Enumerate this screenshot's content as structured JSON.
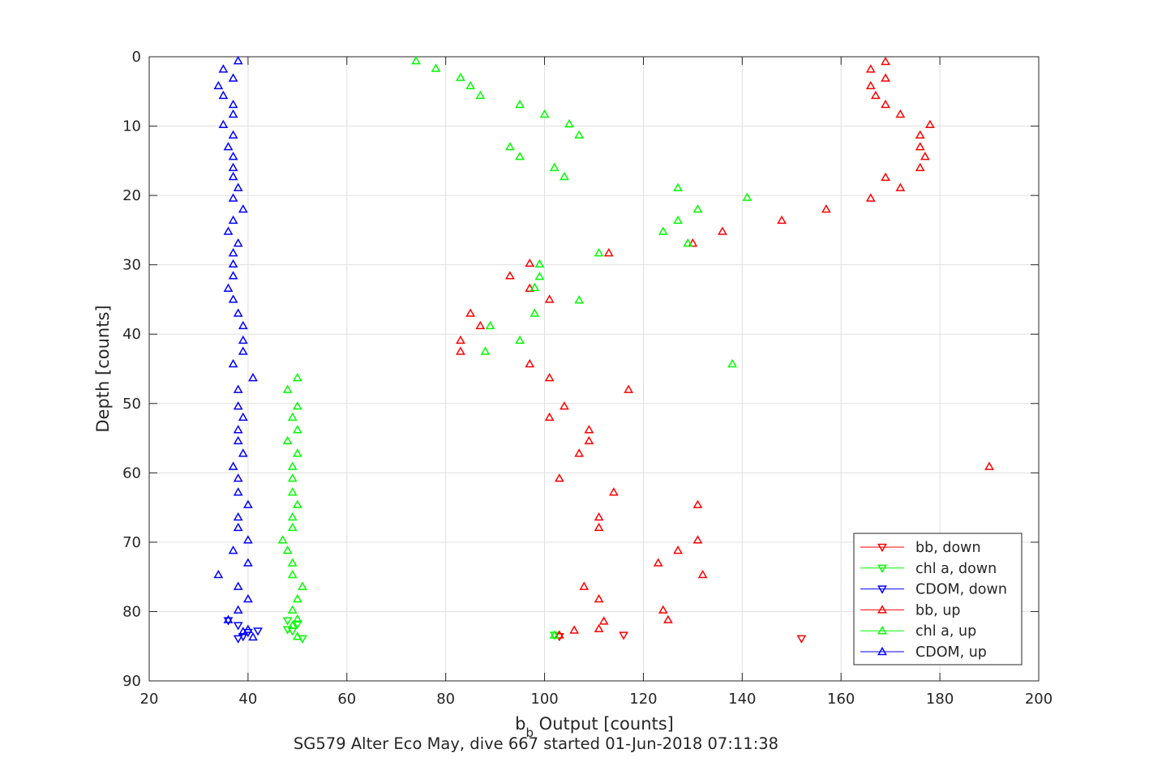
{
  "chart_data": {
    "type": "scatter",
    "title": "",
    "subtitle": "SG579 Alter Eco May, dive 667 started 01-Jun-2018 07:11:38",
    "xlabel": "b",
    "xlabel_sub": "b",
    "xlabel_rest": " Output [counts]",
    "ylabel": "Depth [counts]",
    "xlim": [
      20,
      200
    ],
    "ylim": [
      0,
      90
    ],
    "y_reversed": true,
    "grid": true,
    "xticks": [
      "20",
      "40",
      "60",
      "80",
      "100",
      "120",
      "140",
      "160",
      "180",
      "200"
    ],
    "yticks": [
      "0",
      "10",
      "20",
      "30",
      "40",
      "50",
      "60",
      "70",
      "80",
      "90"
    ],
    "legend_position": "bottom-right",
    "series": [
      {
        "name": "bb, down",
        "color": "#ff0000",
        "marker": "triangle-down",
        "points": [
          [
            116,
            83.4
          ],
          [
            152,
            83.9
          ],
          [
            103,
            83.6
          ]
        ]
      },
      {
        "name": "chl a, down",
        "color": "#00ff00",
        "marker": "triangle-down",
        "points": [
          [
            48,
            81.3
          ],
          [
            48,
            82.6
          ],
          [
            49,
            82.8
          ],
          [
            50,
            81.8
          ],
          [
            51,
            83.9
          ],
          [
            102,
            83.4
          ]
        ]
      },
      {
        "name": "CDOM, down",
        "color": "#0000ff",
        "marker": "triangle-down",
        "points": [
          [
            36,
            81.3
          ],
          [
            38,
            82.0
          ],
          [
            42,
            82.8
          ],
          [
            40,
            83.0
          ],
          [
            38,
            83.9
          ],
          [
            39,
            83.6
          ]
        ]
      },
      {
        "name": "bb, up",
        "color": "#ff0000",
        "marker": "triangle-up",
        "points": [
          [
            169,
            0.7
          ],
          [
            166,
            1.8
          ],
          [
            169,
            3.1
          ],
          [
            166,
            4.2
          ],
          [
            167,
            5.6
          ],
          [
            169,
            6.9
          ],
          [
            172,
            8.3
          ],
          [
            178,
            9.8
          ],
          [
            176,
            11.3
          ],
          [
            176,
            13.0
          ],
          [
            177,
            14.4
          ],
          [
            176,
            16.0
          ],
          [
            169,
            17.4
          ],
          [
            172,
            18.9
          ],
          [
            166,
            20.4
          ],
          [
            157,
            22.0
          ],
          [
            148,
            23.6
          ],
          [
            136,
            25.2
          ],
          [
            130,
            26.9
          ],
          [
            113,
            28.3
          ],
          [
            97,
            29.8
          ],
          [
            93,
            31.6
          ],
          [
            97,
            33.4
          ],
          [
            101,
            35.0
          ],
          [
            85,
            37.0
          ],
          [
            87,
            38.8
          ],
          [
            83,
            40.9
          ],
          [
            83,
            42.5
          ],
          [
            97,
            44.3
          ],
          [
            101,
            46.3
          ],
          [
            117,
            48.0
          ],
          [
            104,
            50.4
          ],
          [
            101,
            52.0
          ],
          [
            109,
            53.8
          ],
          [
            109,
            55.4
          ],
          [
            107,
            57.2
          ],
          [
            190,
            59.1
          ],
          [
            103,
            60.8
          ],
          [
            114,
            62.8
          ],
          [
            131,
            64.6
          ],
          [
            111,
            66.4
          ],
          [
            111,
            67.9
          ],
          [
            131,
            69.7
          ],
          [
            127,
            71.2
          ],
          [
            123,
            73.0
          ],
          [
            132,
            74.7
          ],
          [
            108,
            76.4
          ],
          [
            111,
            78.2
          ],
          [
            124,
            79.8
          ],
          [
            125,
            81.2
          ],
          [
            112,
            81.4
          ],
          [
            111,
            82.5
          ],
          [
            106,
            82.7
          ],
          [
            103,
            83.4
          ]
        ]
      },
      {
        "name": "chl a, up",
        "color": "#00ff00",
        "marker": "triangle-up",
        "points": [
          [
            74,
            0.6
          ],
          [
            78,
            1.7
          ],
          [
            83,
            3.0
          ],
          [
            85,
            4.2
          ],
          [
            87,
            5.6
          ],
          [
            95,
            6.9
          ],
          [
            100,
            8.3
          ],
          [
            105,
            9.7
          ],
          [
            107,
            11.3
          ],
          [
            93,
            13.0
          ],
          [
            95,
            14.4
          ],
          [
            102,
            16.0
          ],
          [
            104,
            17.3
          ],
          [
            127,
            18.9
          ],
          [
            141,
            20.3
          ],
          [
            131,
            22.0
          ],
          [
            127,
            23.6
          ],
          [
            124,
            25.2
          ],
          [
            129,
            26.9
          ],
          [
            111,
            28.3
          ],
          [
            99,
            29.9
          ],
          [
            99,
            31.7
          ],
          [
            98,
            33.3
          ],
          [
            107,
            35.1
          ],
          [
            98,
            37.0
          ],
          [
            89,
            38.8
          ],
          [
            95,
            40.9
          ],
          [
            88,
            42.5
          ],
          [
            138,
            44.3
          ],
          [
            50,
            46.3
          ],
          [
            48,
            48.0
          ],
          [
            50,
            50.4
          ],
          [
            49,
            52.0
          ],
          [
            50,
            53.8
          ],
          [
            48,
            55.4
          ],
          [
            50,
            57.2
          ],
          [
            49,
            59.1
          ],
          [
            49,
            60.8
          ],
          [
            49,
            62.8
          ],
          [
            50,
            64.6
          ],
          [
            49,
            66.4
          ],
          [
            49,
            67.9
          ],
          [
            47,
            69.7
          ],
          [
            48,
            71.2
          ],
          [
            49,
            73.0
          ],
          [
            49,
            74.7
          ],
          [
            51,
            76.4
          ],
          [
            50,
            78.2
          ],
          [
            49,
            79.8
          ],
          [
            50,
            81.1
          ],
          [
            49,
            82.0
          ],
          [
            50,
            83.6
          ],
          [
            102,
            83.4
          ]
        ]
      },
      {
        "name": "CDOM, up",
        "color": "#0000ff",
        "marker": "triangle-up",
        "points": [
          [
            38,
            0.6
          ],
          [
            35,
            1.8
          ],
          [
            37,
            3.1
          ],
          [
            34,
            4.2
          ],
          [
            35,
            5.6
          ],
          [
            37,
            6.9
          ],
          [
            37,
            8.3
          ],
          [
            35,
            9.8
          ],
          [
            37,
            11.3
          ],
          [
            36,
            13.0
          ],
          [
            37,
            14.4
          ],
          [
            37,
            16.0
          ],
          [
            37,
            17.3
          ],
          [
            38,
            18.9
          ],
          [
            37,
            20.4
          ],
          [
            39,
            22.0
          ],
          [
            37,
            23.6
          ],
          [
            36,
            25.2
          ],
          [
            38,
            26.9
          ],
          [
            37,
            28.3
          ],
          [
            37,
            29.9
          ],
          [
            37,
            31.6
          ],
          [
            36,
            33.4
          ],
          [
            37,
            35.0
          ],
          [
            38,
            37.0
          ],
          [
            39,
            38.8
          ],
          [
            39,
            40.9
          ],
          [
            39,
            42.5
          ],
          [
            37,
            44.3
          ],
          [
            41,
            46.3
          ],
          [
            38,
            48.0
          ],
          [
            38,
            50.4
          ],
          [
            39,
            52.0
          ],
          [
            38,
            53.8
          ],
          [
            38,
            55.4
          ],
          [
            39,
            57.2
          ],
          [
            37,
            59.1
          ],
          [
            38,
            60.8
          ],
          [
            38,
            62.8
          ],
          [
            40,
            64.6
          ],
          [
            38,
            66.4
          ],
          [
            38,
            67.9
          ],
          [
            40,
            69.7
          ],
          [
            37,
            71.2
          ],
          [
            40,
            73.0
          ],
          [
            34,
            74.7
          ],
          [
            38,
            76.4
          ],
          [
            40,
            78.2
          ],
          [
            38,
            79.8
          ],
          [
            36,
            81.2
          ],
          [
            40,
            82.6
          ],
          [
            41,
            83.7
          ],
          [
            39,
            82.9
          ]
        ]
      }
    ]
  }
}
